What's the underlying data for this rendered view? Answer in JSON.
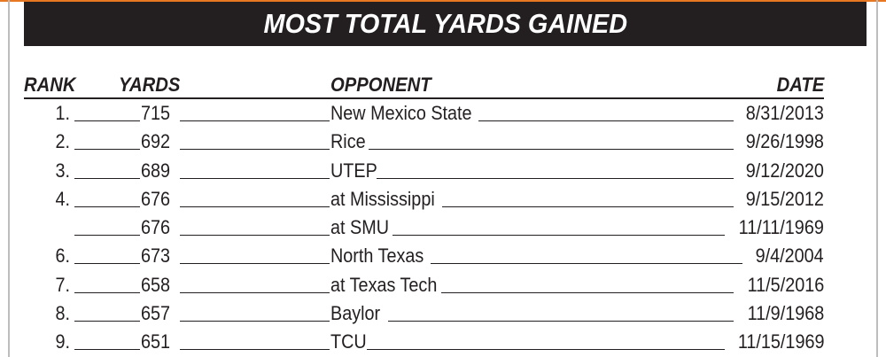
{
  "banner": {
    "title": "MOST TOTAL YARDS GAINED"
  },
  "table": {
    "columns": {
      "rank": "RANK",
      "yards": "YARDS",
      "opponent": "OPPONENT",
      "date": "DATE"
    },
    "rows": [
      {
        "rank": "1.",
        "yards": "715",
        "opponent": "New Mexico State",
        "date": "8/31/2013"
      },
      {
        "rank": "2.",
        "yards": "692",
        "opponent": "Rice",
        "date": "9/26/1998"
      },
      {
        "rank": "3.",
        "yards": "689",
        "opponent": "UTEP",
        "date": "9/12/2020"
      },
      {
        "rank": "4.",
        "yards": "676",
        "opponent": "at Mississippi",
        "date": "9/15/2012"
      },
      {
        "rank": "",
        "yards": "676",
        "opponent": "at SMU",
        "date": "11/11/1969"
      },
      {
        "rank": "6.",
        "yards": "673",
        "opponent": "North Texas",
        "date": "9/4/2004"
      },
      {
        "rank": "7.",
        "yards": "658",
        "opponent": "at Texas Tech",
        "date": "11/5/2016"
      },
      {
        "rank": "8.",
        "yards": "657",
        "opponent": "Baylor",
        "date": "11/9/1968"
      },
      {
        "rank": "9.",
        "yards": "651",
        "opponent": "TCU",
        "date": "11/15/1969"
      }
    ]
  }
}
